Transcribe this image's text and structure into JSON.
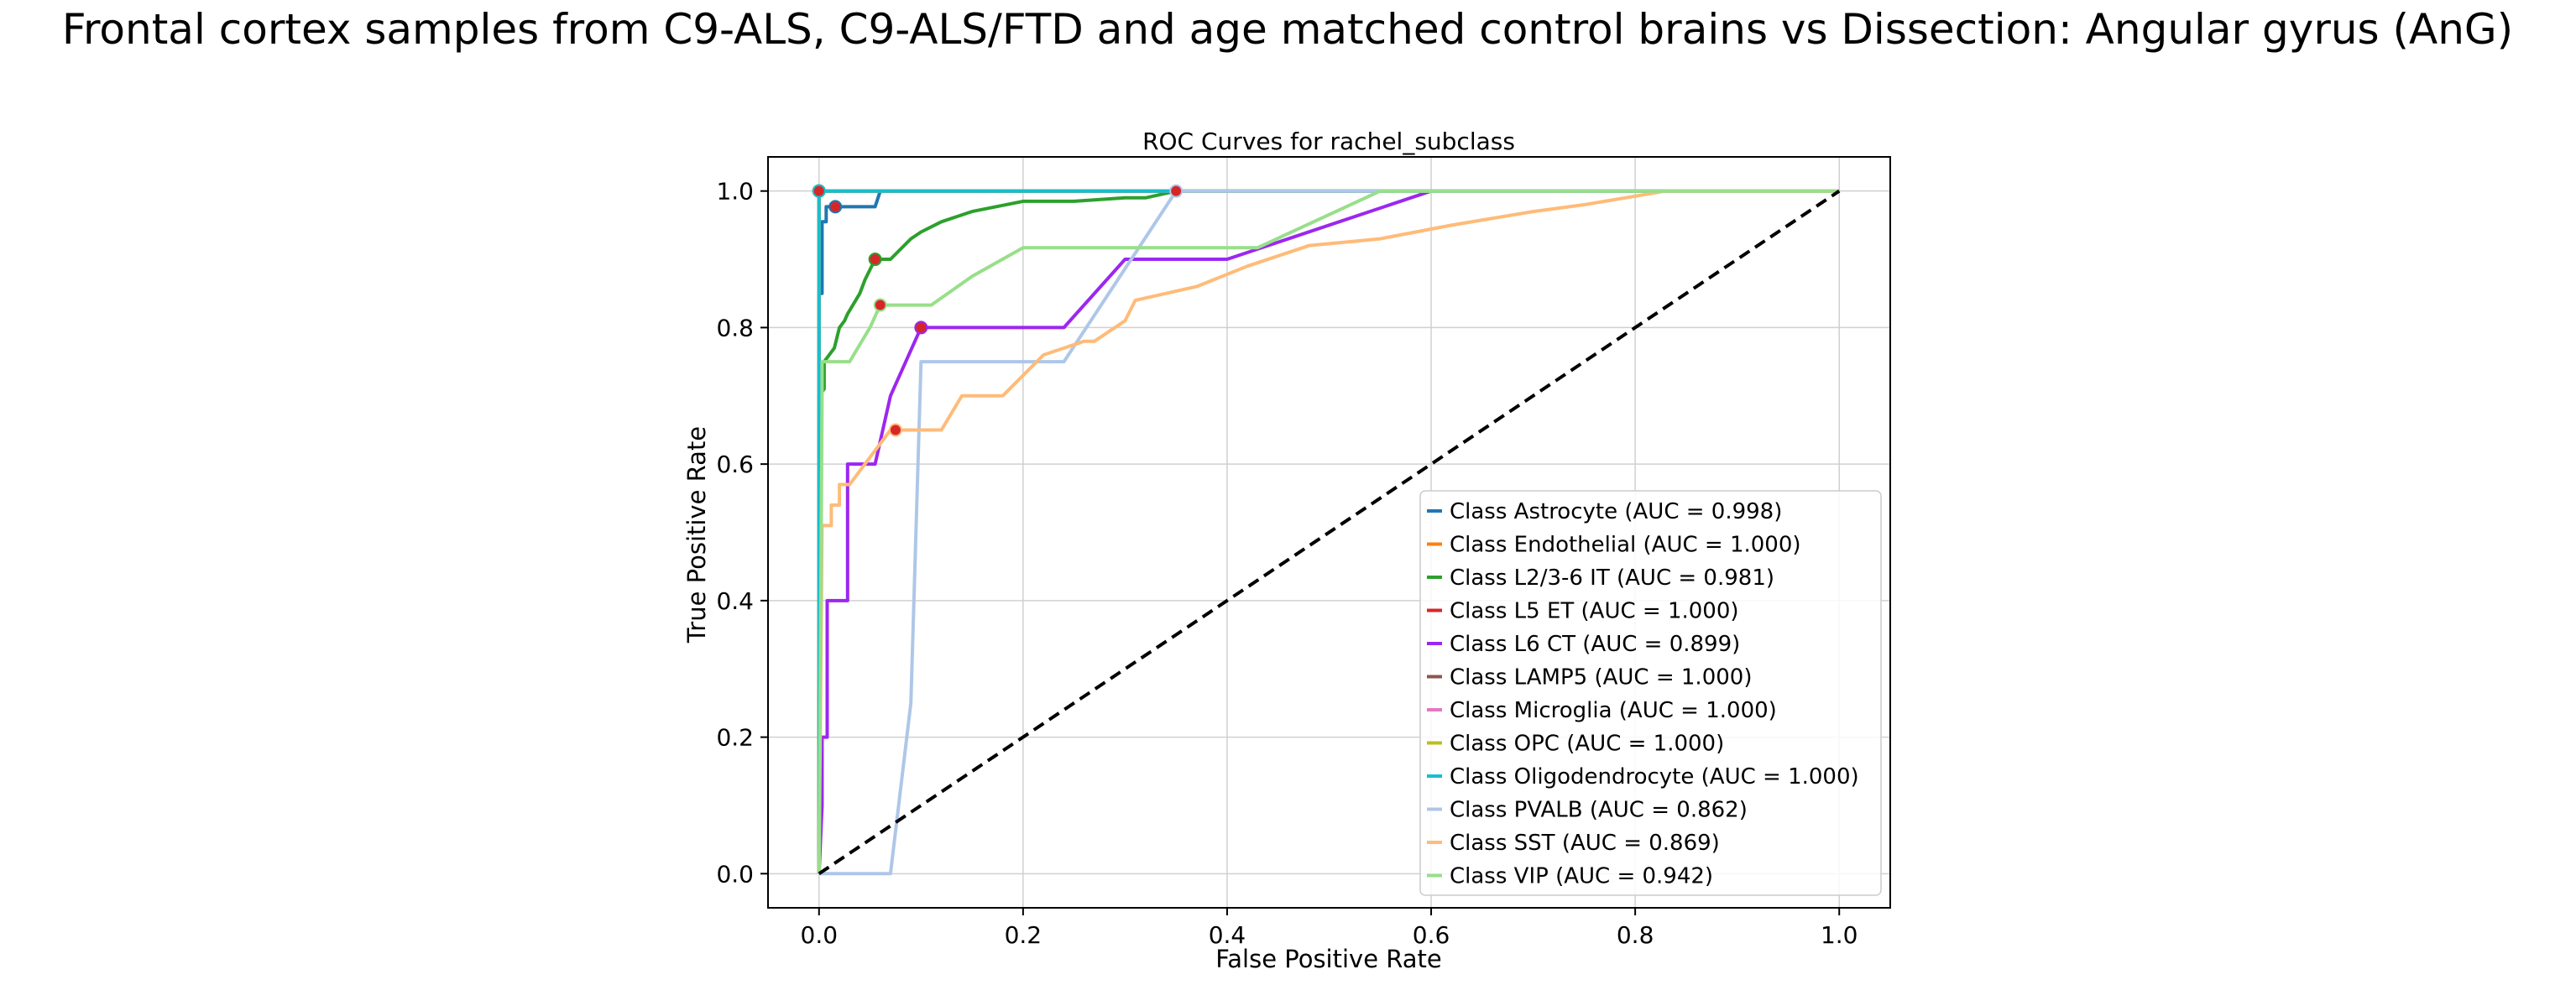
{
  "figure": {
    "suptitle": "Frontal cortex samples from C9-ALS, C9-ALS/FTD and age matched control brains vs Dissection: Angular gyrus (AnG)"
  },
  "chart_data": {
    "type": "line",
    "title": "ROC Curves for rachel_subclass",
    "xlabel": "False Positive Rate",
    "ylabel": "True Positive Rate",
    "xlim": [
      -0.05,
      1.05
    ],
    "ylim": [
      -0.05,
      1.05
    ],
    "xticks": [
      0.0,
      0.2,
      0.4,
      0.6,
      0.8,
      1.0
    ],
    "yticks": [
      0.0,
      0.2,
      0.4,
      0.6,
      0.8,
      1.0
    ],
    "xtick_labels": [
      "0.0",
      "0.2",
      "0.4",
      "0.6",
      "0.8",
      "1.0"
    ],
    "ytick_labels": [
      "0.0",
      "0.2",
      "0.4",
      "0.6",
      "0.8",
      "1.0"
    ],
    "grid": true,
    "legend_position": "lower-right",
    "diagonal": {
      "x": [
        0,
        1
      ],
      "y": [
        0,
        1
      ],
      "color": "#000000",
      "style": "dashed"
    },
    "marker_color": "#d62728",
    "series": [
      {
        "name": "Class Astrocyte (AUC = 0.998)",
        "color": "#1f77b4",
        "x": [
          0,
          0,
          0.003,
          0.003,
          0.007,
          0.007,
          0.016,
          0.016,
          0.055,
          0.06,
          1.0
        ],
        "y": [
          0,
          0.85,
          0.85,
          0.955,
          0.955,
          0.977,
          0.977,
          0.977,
          0.977,
          1.0,
          1.0
        ],
        "marker": [
          0.016,
          0.977
        ]
      },
      {
        "name": "Class Endothelial (AUC = 1.000)",
        "color": "#ff7f0e",
        "x": [
          0,
          0,
          1.0
        ],
        "y": [
          0,
          1.0,
          1.0
        ],
        "marker": [
          0,
          1.0
        ]
      },
      {
        "name": "Class L2/3-6 IT (AUC = 0.981)",
        "color": "#2ca02c",
        "x": [
          0,
          0,
          0.005,
          0.005,
          0.015,
          0.02,
          0.025,
          0.028,
          0.04,
          0.045,
          0.055,
          0.07,
          0.09,
          0.1,
          0.12,
          0.15,
          0.2,
          0.25,
          0.3,
          0.32,
          0.35,
          1.0
        ],
        "y": [
          0,
          0.7,
          0.71,
          0.75,
          0.77,
          0.8,
          0.81,
          0.82,
          0.85,
          0.87,
          0.9,
          0.9,
          0.93,
          0.94,
          0.955,
          0.97,
          0.985,
          0.985,
          0.99,
          0.99,
          1.0,
          1.0
        ],
        "marker": [
          0.055,
          0.9
        ]
      },
      {
        "name": "Class L5 ET (AUC = 1.000)",
        "color": "#d62728",
        "x": [
          0,
          0,
          1.0
        ],
        "y": [
          0,
          1.0,
          1.0
        ],
        "marker": [
          0,
          1.0
        ]
      },
      {
        "name": "Class L6 CT (AUC = 0.899)",
        "color": "#9c27f0",
        "x": [
          0,
          0.003,
          0.003,
          0.008,
          0.008,
          0.013,
          0.013,
          0.028,
          0.028,
          0.035,
          0.035,
          0.055,
          0.07,
          0.1,
          0.24,
          0.3,
          0.4,
          0.6,
          1.0
        ],
        "y": [
          0,
          0.1,
          0.2,
          0.2,
          0.4,
          0.4,
          0.4,
          0.4,
          0.6,
          0.6,
          0.6,
          0.6,
          0.7,
          0.8,
          0.8,
          0.9,
          0.9,
          1.0,
          1.0
        ],
        "marker": [
          0.1,
          0.8
        ]
      },
      {
        "name": "Class LAMP5 (AUC = 1.000)",
        "color": "#8c564b",
        "x": [
          0,
          0,
          1.0
        ],
        "y": [
          0,
          1.0,
          1.0
        ],
        "marker": [
          0,
          1.0
        ]
      },
      {
        "name": "Class Microglia (AUC = 1.000)",
        "color": "#e377c2",
        "x": [
          0,
          0,
          1.0
        ],
        "y": [
          0,
          1.0,
          1.0
        ],
        "marker": [
          0,
          1.0
        ]
      },
      {
        "name": "Class OPC (AUC = 1.000)",
        "color": "#bcbd22",
        "x": [
          0,
          0,
          1.0
        ],
        "y": [
          0,
          1.0,
          1.0
        ],
        "marker": [
          0,
          1.0
        ]
      },
      {
        "name": "Class Oligodendrocyte (AUC = 1.000)",
        "color": "#17becf",
        "x": [
          0,
          0,
          1.0
        ],
        "y": [
          0,
          1.0,
          1.0
        ],
        "marker": [
          0,
          1.0
        ]
      },
      {
        "name": "Class PVALB (AUC = 0.862)",
        "color": "#aec7e8",
        "x": [
          0,
          0.07,
          0.09,
          0.1,
          0.24,
          0.35,
          1.0
        ],
        "y": [
          0,
          0,
          0.25,
          0.75,
          0.75,
          1.0,
          1.0
        ],
        "marker": [
          0.35,
          1.0
        ]
      },
      {
        "name": "Class SST (AUC = 0.869)",
        "color": "#ffbb78",
        "x": [
          0,
          0.003,
          0.003,
          0.012,
          0.012,
          0.02,
          0.02,
          0.03,
          0.045,
          0.07,
          0.075,
          0.12,
          0.14,
          0.18,
          0.22,
          0.26,
          0.27,
          0.3,
          0.31,
          0.37,
          0.42,
          0.48,
          0.55,
          0.62,
          0.7,
          0.75,
          0.83,
          1.0
        ],
        "y": [
          0,
          0.51,
          0.51,
          0.51,
          0.54,
          0.54,
          0.57,
          0.57,
          0.6,
          0.65,
          0.65,
          0.65,
          0.7,
          0.7,
          0.76,
          0.78,
          0.78,
          0.81,
          0.84,
          0.86,
          0.89,
          0.92,
          0.93,
          0.95,
          0.97,
          0.98,
          1.0,
          1.0
        ],
        "marker": [
          0.075,
          0.65
        ]
      },
      {
        "name": "Class VIP (AUC = 0.942)",
        "color": "#98df8a",
        "x": [
          0,
          0.003,
          0.003,
          0.03,
          0.05,
          0.06,
          0.11,
          0.15,
          0.2,
          0.24,
          0.43,
          0.55,
          1.0
        ],
        "y": [
          0,
          0.7,
          0.75,
          0.75,
          0.8,
          0.833,
          0.833,
          0.875,
          0.917,
          0.917,
          0.917,
          1.0,
          1.0
        ],
        "marker": [
          0.06,
          0.833
        ]
      }
    ]
  }
}
